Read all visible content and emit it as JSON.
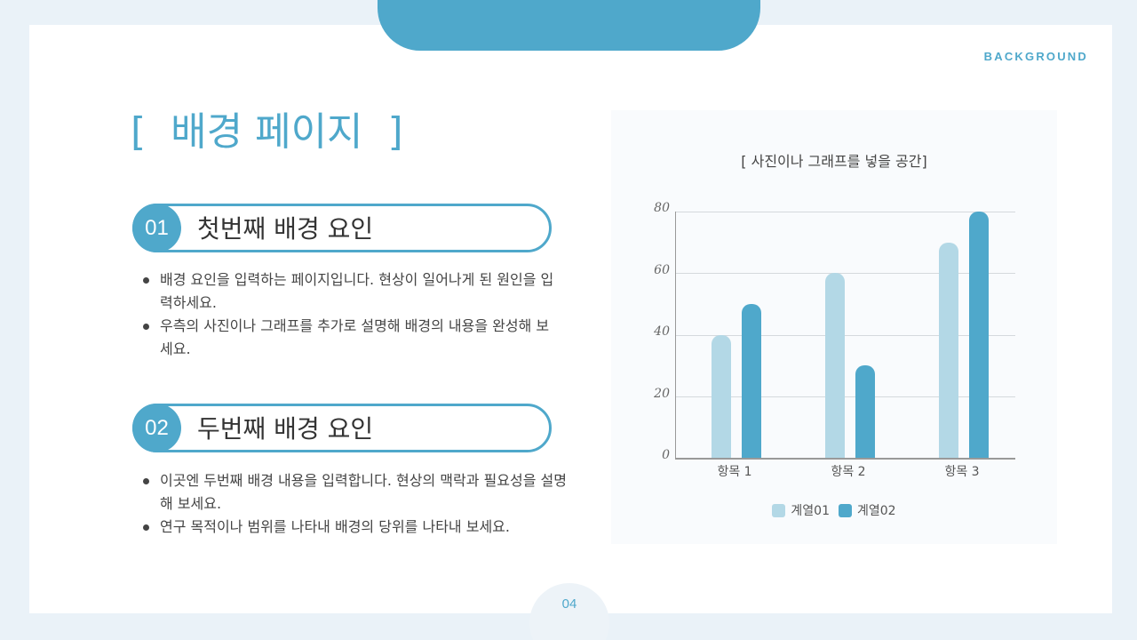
{
  "header": {
    "section_tag": "BACKGROUND",
    "page_title": "[  배경 페이지  ]"
  },
  "factors": [
    {
      "number": "01",
      "title": "첫번째 배경 요인",
      "bullets": [
        "배경 요인을 입력하는 페이지입니다. 현상이 일어나게 된 원인을 입력하세요.",
        "우측의 사진이나 그래프를 추가로 설명해 배경의 내용을 완성해 보세요."
      ]
    },
    {
      "number": "02",
      "title": "두번째 배경 요인",
      "bullets": [
        "이곳엔 두번째 배경 내용을 입력합니다. 현상의 맥락과 필요성을 설명해 보세요.",
        "연구 목적이나 범위를 나타내 배경의 당위를 나타내 보세요."
      ]
    }
  ],
  "chart_panel": {
    "title": "[ 사진이나 그래프를 넣을 공간]"
  },
  "chart_data": {
    "type": "bar",
    "title": "",
    "categories": [
      "항목 1",
      "항목 2",
      "항목 3"
    ],
    "series": [
      {
        "name": "계열01",
        "values": [
          40,
          60,
          70
        ],
        "color": "#b3d8e6"
      },
      {
        "name": "계열02",
        "values": [
          50,
          30,
          80
        ],
        "color": "#4fa8cb"
      }
    ],
    "yticks": [
      "0",
      "20",
      "40",
      "60",
      "80"
    ],
    "xlabel": "",
    "ylabel": "",
    "ylim": [
      0,
      80
    ],
    "grid": true,
    "legend_position": "bottom"
  },
  "footer": {
    "page_number": "04"
  },
  "colors": {
    "accent": "#4fa8cb",
    "accent_light": "#b3d8e6",
    "background": "#eaf2f8"
  }
}
